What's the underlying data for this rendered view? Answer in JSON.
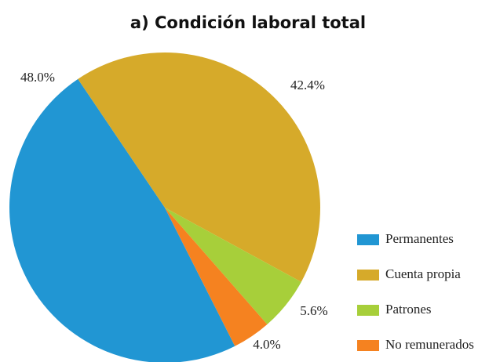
{
  "chart_data": {
    "type": "pie",
    "title": "a) Condición laboral total",
    "categories": [
      "Permanentes",
      "Cuenta propia",
      "Patrones",
      "No remunerados"
    ],
    "values": [
      48.0,
      42.4,
      5.6,
      4.0
    ],
    "value_labels": [
      "48.0%",
      "42.4%",
      "5.6%",
      "4.0%"
    ],
    "colors": [
      "#2196d3",
      "#d6aa2a",
      "#a7cf3a",
      "#f58220"
    ],
    "legend": "right"
  }
}
